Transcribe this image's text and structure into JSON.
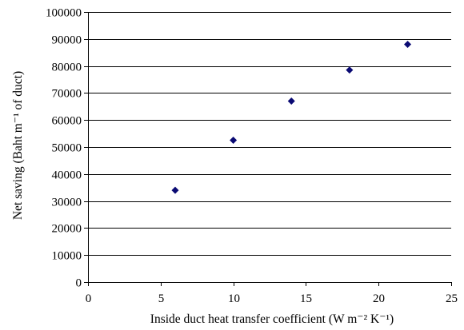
{
  "chart_data": {
    "type": "scatter",
    "title": "",
    "xlabel": "Inside duct heat transfer coefficient (W m⁻² K⁻¹)",
    "ylabel": "Net saving (Baht m⁻¹ of duct)",
    "xlim": [
      0,
      25
    ],
    "ylim": [
      0,
      100000
    ],
    "x_ticks": [
      0,
      5,
      10,
      15,
      20,
      25
    ],
    "y_ticks": [
      0,
      10000,
      20000,
      30000,
      40000,
      50000,
      60000,
      70000,
      80000,
      90000,
      100000
    ],
    "grid": "horizontal",
    "marker": "diamond",
    "marker_color": "#0a0a73",
    "series": [
      {
        "x": [
          6,
          10,
          14,
          18,
          22
        ],
        "y": [
          34000,
          52500,
          67000,
          78500,
          88000
        ]
      }
    ]
  }
}
